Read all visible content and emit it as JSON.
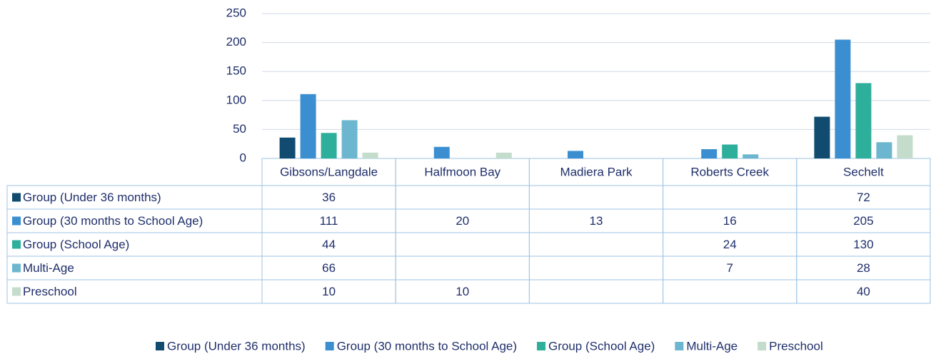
{
  "chart_data": {
    "type": "bar",
    "categories": [
      "Gibsons/Langdale",
      "Halfmoon Bay",
      "Madiera Park",
      "Roberts Creek",
      "Sechelt"
    ],
    "series": [
      {
        "name": "Group (Under 36 months)",
        "color": "#114b70",
        "values": [
          36,
          null,
          null,
          null,
          72
        ]
      },
      {
        "name": "Group (30 months to School Age)",
        "color": "#3b8fd1",
        "values": [
          111,
          20,
          13,
          16,
          205
        ]
      },
      {
        "name": "Group (School Age)",
        "color": "#2eaf9b",
        "values": [
          44,
          null,
          null,
          24,
          130
        ]
      },
      {
        "name": "Multi-Age",
        "color": "#6cb6d0",
        "values": [
          66,
          null,
          null,
          7,
          28
        ]
      },
      {
        "name": "Preschool",
        "color": "#c3dccc",
        "values": [
          10,
          10,
          null,
          null,
          40
        ]
      }
    ],
    "ylim": [
      0,
      250
    ],
    "yticks": [
      0,
      50,
      100,
      150,
      200,
      250
    ],
    "grid": true
  }
}
